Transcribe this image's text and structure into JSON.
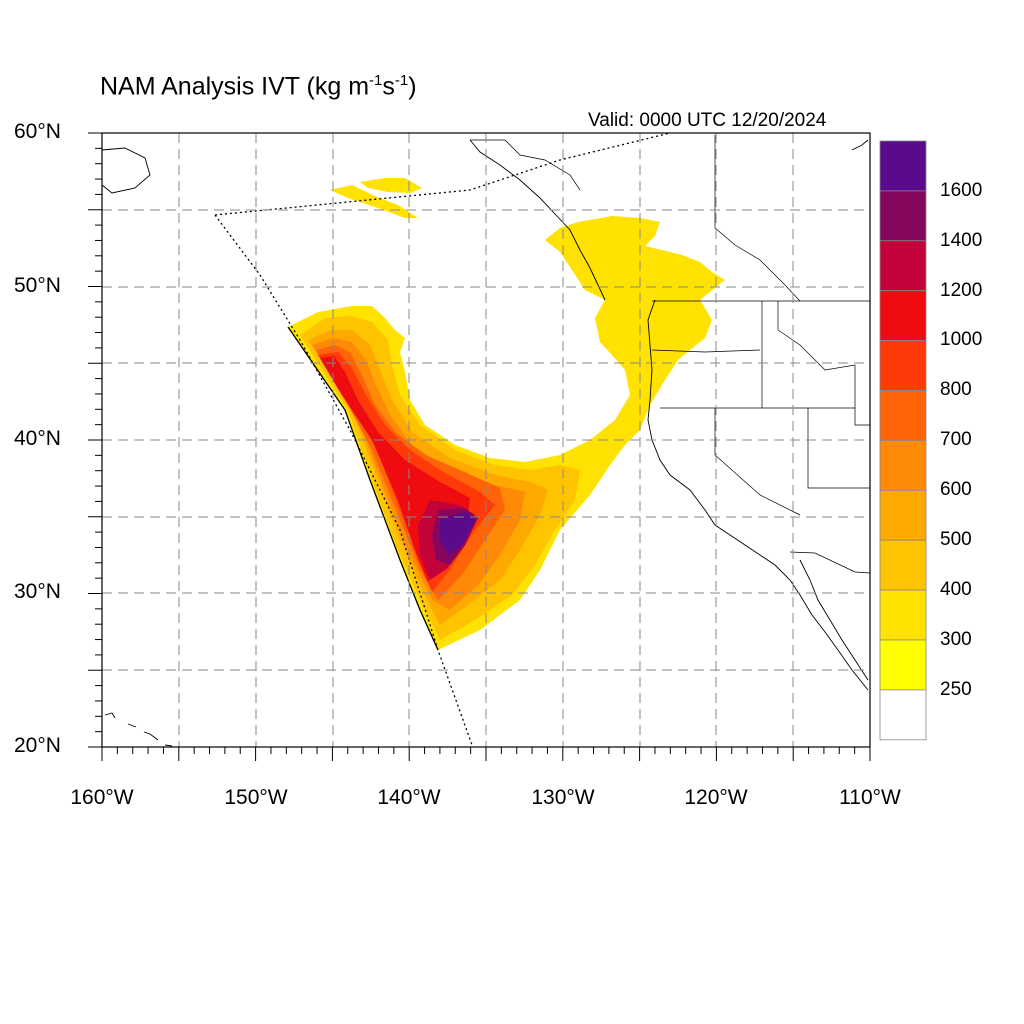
{
  "title": {
    "main": "NAM Analysis IVT (kg m",
    "sup1": "-1",
    "mid": "s",
    "sup2": "-1",
    "end": ")"
  },
  "valid_time": "Valid: 0000 UTC 12/20/2024",
  "lat_labels": [
    "60°N",
    "50°N",
    "40°N",
    "30°N",
    "20°N"
  ],
  "lon_labels": [
    "160°W",
    "150°W",
    "140°W",
    "130°W",
    "120°W",
    "110°W"
  ],
  "colorbar": {
    "labels": [
      "1600",
      "1400",
      "1200",
      "1000",
      "800",
      "700",
      "600",
      "500",
      "400",
      "300",
      "250"
    ],
    "colors": [
      "#5a0a8c",
      "#86065e",
      "#c4023a",
      "#ee0c10",
      "#ff3a08",
      "#ff6408",
      "#ff8a08",
      "#ffa800",
      "#ffc400",
      "#ffe200",
      "#ffff00",
      "#ffffff"
    ]
  },
  "map_extent": {
    "lon": [
      -160,
      -110
    ],
    "lat": [
      20,
      60
    ],
    "grid_lon_step": 5,
    "grid_lat_step": 5
  },
  "colors": {
    "low": "#ffff00",
    "mid": "#ffa800",
    "high": "#ee0c10",
    "max": "#5a0a8c"
  }
}
